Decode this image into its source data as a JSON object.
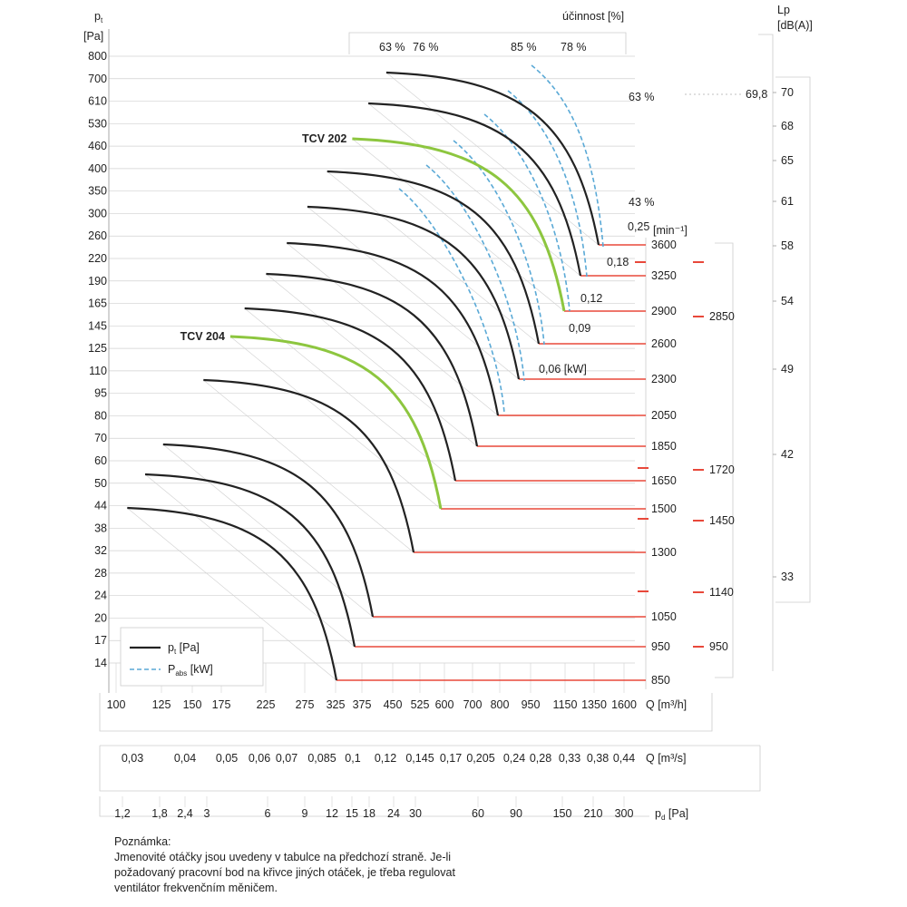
{
  "chart_data": {
    "type": "line",
    "title": "",
    "y_axis": {
      "label": "p",
      "label_sub": "t",
      "unit": "[Pa]",
      "ticks": [
        "800",
        "700",
        "610",
        "530",
        "460",
        "400",
        "350",
        "300",
        "260",
        "220",
        "190",
        "165",
        "145",
        "125",
        "110",
        "95",
        "80",
        "70",
        "60",
        "50",
        "44",
        "38",
        "32",
        "28",
        "24",
        "20",
        "17",
        "14"
      ]
    },
    "x_axes": [
      {
        "name": "Q",
        "unit": "[m³/h]",
        "ticks": [
          "100",
          "125",
          "150",
          "175",
          "225",
          "275",
          "325",
          "375",
          "450",
          "525",
          "600",
          "700",
          "800",
          "950",
          "1150",
          "1350",
          "1600"
        ]
      },
      {
        "name": "Q",
        "unit": "[m³/s]",
        "ticks": [
          "0,03",
          "0,04",
          "0,05",
          "0,06",
          "0,07",
          "0,085",
          "0,1",
          "0,12",
          "0,145",
          "0,17",
          "0,205",
          "0,24",
          "0,28",
          "0,33",
          "0,38",
          "0,44"
        ]
      },
      {
        "name": "p",
        "name_sub": "d",
        "unit": "[Pa]",
        "ticks": [
          "1,2",
          "1,8",
          "2,4",
          "3",
          "6",
          "9",
          "12",
          "15",
          "18",
          "24",
          "30",
          "60",
          "90",
          "150",
          "210",
          "300"
        ]
      }
    ],
    "efficiency": {
      "label": "účinnost [%]",
      "top_labels": [
        "63 %",
        "76 %",
        "85 %",
        "78 %"
      ],
      "right_labels": [
        "63 %",
        "43 %"
      ]
    },
    "power_labels": [
      "0,25",
      "0,18",
      "0,12",
      "0,09",
      "0,06 [kW]"
    ],
    "speed_unit": "[min⁻¹]",
    "speeds_rpm": [
      3600,
      3250,
      2900,
      2600,
      2300,
      2050,
      1850,
      1650,
      1500,
      1300,
      1050,
      950,
      850
    ],
    "nominal_speeds": [
      "2850",
      "1720",
      "1450",
      "1140",
      "950"
    ],
    "noise": {
      "label": "Lp",
      "unit": "[dB(A)]",
      "ticks": [
        "70",
        "68",
        "65",
        "61",
        "58",
        "54",
        "49",
        "42",
        "33"
      ],
      "marker": "69,8"
    },
    "highlight_series": [
      {
        "name": "TCV 202",
        "speed_rpm": 2900,
        "color": "#8dc63f"
      },
      {
        "name": "TCV 204",
        "speed_rpm": 1500,
        "color": "#8dc63f"
      }
    ],
    "legend": {
      "position": "bottom-left",
      "items": [
        {
          "name": "p",
          "sub": "t",
          "unit": " [Pa]",
          "style": "solid",
          "color": "#222222"
        },
        {
          "name": "P",
          "sub": "abs",
          "unit": " [kW]",
          "style": "dashed",
          "color": "#5aa9d6"
        }
      ]
    },
    "colors": {
      "curve": "#222222",
      "highlight": "#8dc63f",
      "power": "#5aa9d6",
      "speed_line": "#e8483a",
      "grid": "#d0d0d0"
    }
  },
  "note": {
    "title": "Poznámka:",
    "lines": [
      "Jmenovité otáčky jsou uvedeny v tabulce na předchozí straně. Je-li",
      "požadovaný pracovní bod na křivce jiných otáček, je třeba regulovat",
      "ventilátor frekvenčním měničem."
    ]
  }
}
